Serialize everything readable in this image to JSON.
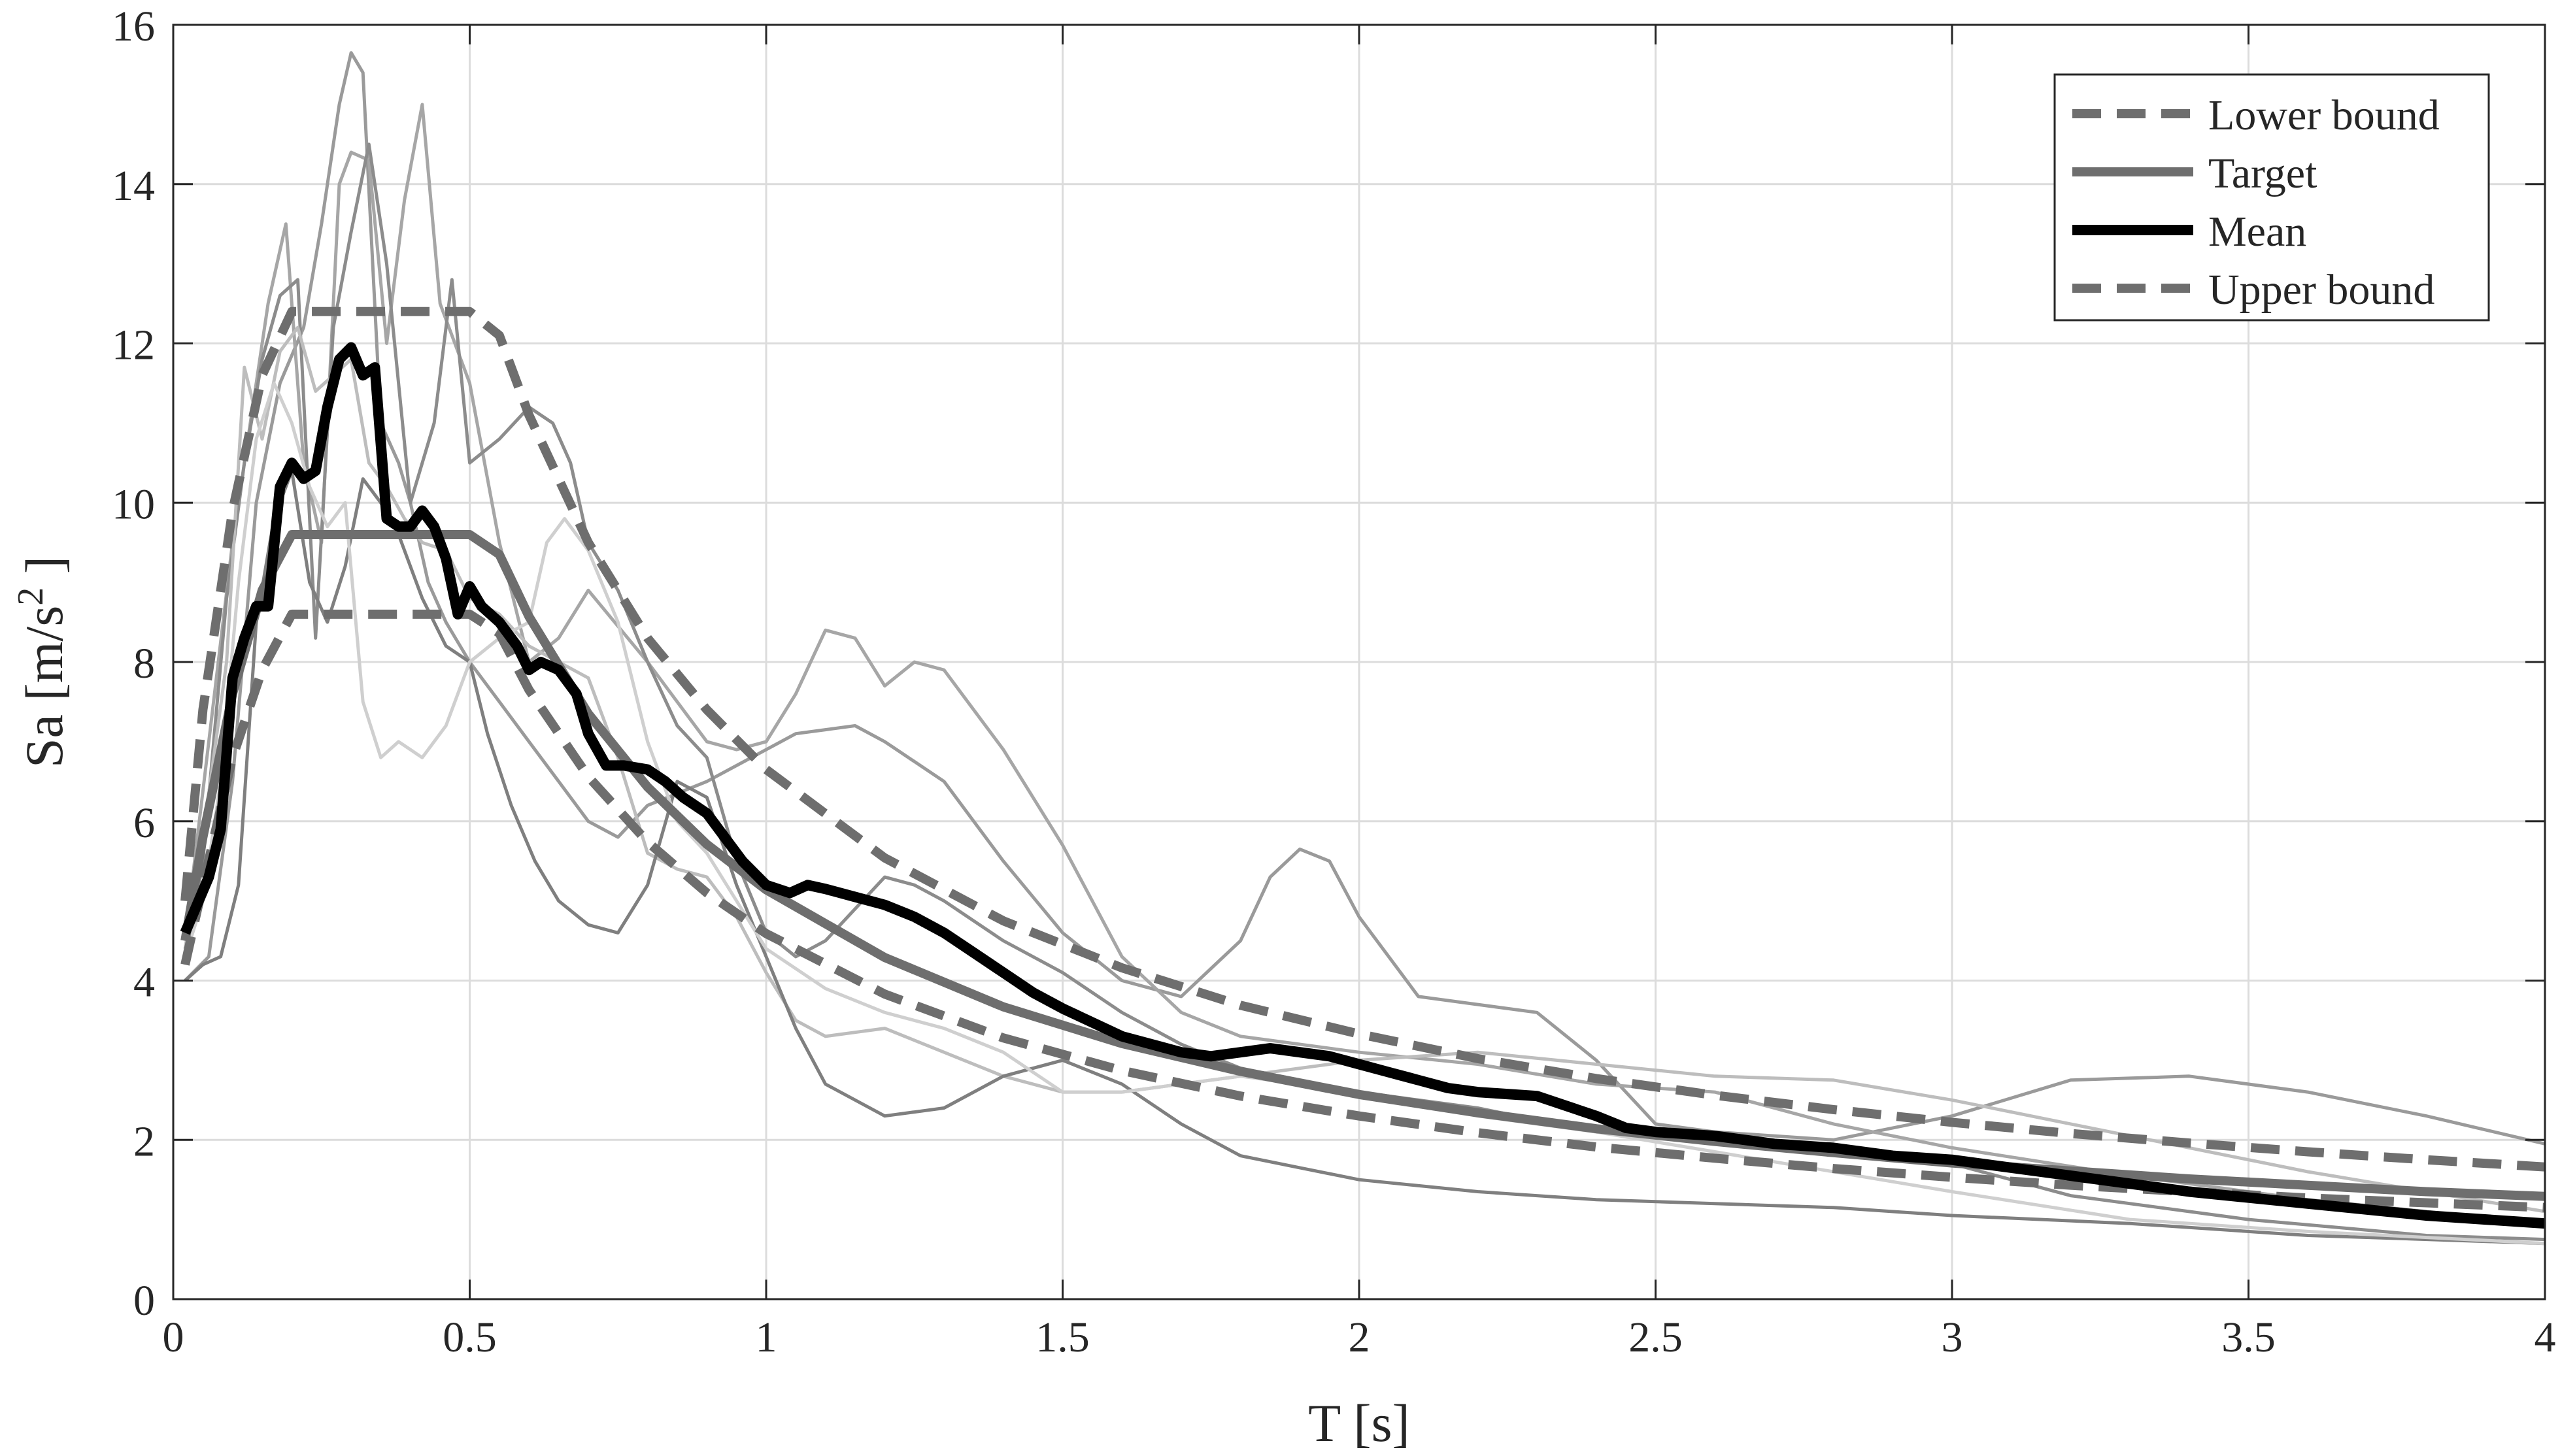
{
  "chart_data": {
    "type": "line",
    "xlabel": "T [s]",
    "ylabel": "Sa [m/s",
    "ylabel_sup": "2",
    "ylabel_tail": " ]",
    "xlim": [
      0,
      4
    ],
    "ylim": [
      0,
      16
    ],
    "xticks": [
      0,
      0.5,
      1,
      1.5,
      2,
      2.5,
      3,
      3.5,
      4
    ],
    "xtick_labels": [
      "0",
      "0.5",
      "1",
      "1.5",
      "2",
      "2.5",
      "3",
      "3.5",
      "4"
    ],
    "yticks": [
      0,
      2,
      4,
      6,
      8,
      10,
      12,
      14,
      16
    ],
    "ytick_labels": [
      "0",
      "2",
      "4",
      "6",
      "8",
      "10",
      "12",
      "14",
      "16"
    ],
    "grid": true,
    "legend_position": "top-right",
    "legend": [
      {
        "label": "Lower bound",
        "style": "dashed",
        "color": "#6e6e6e"
      },
      {
        "label": "Target",
        "style": "solid",
        "color": "#6e6e6e"
      },
      {
        "label": "Mean",
        "style": "solid",
        "color": "#000000"
      },
      {
        "label": "Upper bound",
        "style": "dashed",
        "color": "#6e6e6e"
      }
    ],
    "series": [
      {
        "name": "Lower bound",
        "color": "#6e6e6e",
        "dash": true,
        "width": 14,
        "x": [
          0.02,
          0.05,
          0.1,
          0.15,
          0.2,
          0.25,
          0.3,
          0.35,
          0.4,
          0.45,
          0.5,
          0.55,
          0.6,
          0.7,
          0.8,
          0.9,
          1.0,
          1.2,
          1.4,
          1.6,
          1.8,
          2.0,
          2.2,
          2.4,
          2.6,
          2.8,
          3.0,
          3.2,
          3.4,
          3.6,
          3.8,
          4.0
        ],
        "y": [
          4.2,
          5.2,
          6.8,
          7.9,
          8.6,
          8.6,
          8.6,
          8.6,
          8.6,
          8.6,
          8.6,
          8.36,
          7.65,
          6.56,
          5.74,
          5.1,
          4.59,
          3.83,
          3.28,
          2.87,
          2.55,
          2.3,
          2.09,
          1.91,
          1.77,
          1.64,
          1.53,
          1.43,
          1.35,
          1.27,
          1.21,
          1.15
        ]
      },
      {
        "name": "Target",
        "color": "#6e6e6e",
        "dash": false,
        "width": 14,
        "x": [
          0.02,
          0.05,
          0.1,
          0.15,
          0.2,
          0.25,
          0.3,
          0.35,
          0.4,
          0.45,
          0.5,
          0.55,
          0.6,
          0.7,
          0.8,
          0.9,
          1.0,
          1.2,
          1.4,
          1.6,
          1.8,
          2.0,
          2.2,
          2.4,
          2.6,
          2.8,
          3.0,
          3.2,
          3.4,
          3.6,
          3.8,
          4.0
        ],
        "y": [
          4.5,
          5.8,
          7.6,
          8.9,
          9.6,
          9.6,
          9.6,
          9.6,
          9.6,
          9.6,
          9.6,
          9.35,
          8.57,
          7.35,
          6.43,
          5.71,
          5.14,
          4.29,
          3.67,
          3.21,
          2.86,
          2.57,
          2.34,
          2.14,
          1.98,
          1.84,
          1.71,
          1.61,
          1.51,
          1.43,
          1.35,
          1.29
        ]
      },
      {
        "name": "Upper bound",
        "color": "#6e6e6e",
        "dash": true,
        "width": 14,
        "x": [
          0.02,
          0.05,
          0.1,
          0.15,
          0.2,
          0.25,
          0.3,
          0.35,
          0.4,
          0.45,
          0.5,
          0.55,
          0.6,
          0.7,
          0.8,
          0.9,
          1.0,
          1.2,
          1.4,
          1.6,
          1.8,
          2.0,
          2.2,
          2.4,
          2.6,
          2.8,
          3.0,
          3.2,
          3.4,
          3.6,
          3.8,
          4.0
        ],
        "y": [
          5.0,
          7.4,
          9.9,
          11.6,
          12.4,
          12.4,
          12.4,
          12.4,
          12.4,
          12.4,
          12.4,
          12.1,
          11.1,
          9.5,
          8.3,
          7.4,
          6.65,
          5.54,
          4.75,
          4.16,
          3.69,
          3.33,
          3.02,
          2.77,
          2.56,
          2.38,
          2.22,
          2.08,
          1.96,
          1.85,
          1.75,
          1.66
        ]
      },
      {
        "name": "Mean",
        "color": "#000000",
        "dash": false,
        "width": 16,
        "x": [
          0.02,
          0.06,
          0.08,
          0.1,
          0.12,
          0.14,
          0.16,
          0.18,
          0.2,
          0.22,
          0.24,
          0.26,
          0.28,
          0.3,
          0.32,
          0.34,
          0.36,
          0.38,
          0.4,
          0.42,
          0.44,
          0.46,
          0.48,
          0.5,
          0.52,
          0.55,
          0.58,
          0.6,
          0.62,
          0.65,
          0.68,
          0.7,
          0.73,
          0.76,
          0.8,
          0.83,
          0.86,
          0.9,
          0.93,
          0.96,
          1.0,
          1.04,
          1.07,
          1.1,
          1.15,
          1.2,
          1.25,
          1.3,
          1.35,
          1.4,
          1.45,
          1.5,
          1.6,
          1.7,
          1.75,
          1.8,
          1.85,
          1.9,
          1.95,
          2.0,
          2.05,
          2.1,
          2.15,
          2.2,
          2.3,
          2.4,
          2.45,
          2.5,
          2.6,
          2.7,
          2.8,
          2.9,
          3.0,
          3.2,
          3.4,
          3.6,
          3.8,
          4.0
        ],
        "y": [
          4.6,
          5.3,
          5.9,
          7.8,
          8.3,
          8.7,
          8.7,
          10.2,
          10.5,
          10.3,
          10.4,
          11.2,
          11.8,
          11.95,
          11.6,
          11.7,
          9.8,
          9.7,
          9.7,
          9.9,
          9.7,
          9.3,
          8.6,
          8.95,
          8.7,
          8.5,
          8.2,
          7.9,
          8.0,
          7.9,
          7.6,
          7.1,
          6.7,
          6.7,
          6.65,
          6.5,
          6.3,
          6.1,
          5.8,
          5.5,
          5.2,
          5.1,
          5.2,
          5.15,
          5.05,
          4.95,
          4.8,
          4.6,
          4.35,
          4.1,
          3.85,
          3.65,
          3.3,
          3.1,
          3.05,
          3.1,
          3.15,
          3.1,
          3.05,
          2.95,
          2.85,
          2.75,
          2.65,
          2.6,
          2.55,
          2.3,
          2.15,
          2.1,
          2.05,
          1.95,
          1.9,
          1.8,
          1.75,
          1.55,
          1.35,
          1.2,
          1.05,
          0.95
        ]
      },
      {
        "name": "",
        "color": "#9a9a9a",
        "dash": false,
        "width": 5,
        "x": [
          0.02,
          0.06,
          0.1,
          0.14,
          0.18,
          0.22,
          0.25,
          0.28,
          0.3,
          0.32,
          0.35,
          0.38,
          0.4,
          0.43,
          0.46,
          0.5,
          0.55,
          0.6,
          0.65,
          0.7,
          0.75,
          0.8,
          0.9,
          1.0,
          1.05,
          1.1,
          1.15,
          1.2,
          1.3,
          1.4,
          1.5,
          1.6,
          1.7,
          1.8,
          1.85,
          1.9,
          1.95,
          2.0,
          2.1,
          2.2,
          2.3,
          2.4,
          2.5,
          2.6,
          2.8,
          3.0,
          3.2,
          3.4,
          3.6,
          3.8,
          4.0
        ],
        "y": [
          4.0,
          4.3,
          6.5,
          10.0,
          11.5,
          12.2,
          13.5,
          15.0,
          15.65,
          15.4,
          11.0,
          10.5,
          10.0,
          9.0,
          8.5,
          8.0,
          7.5,
          7.0,
          6.5,
          6.0,
          5.8,
          6.2,
          6.5,
          6.9,
          7.1,
          7.15,
          7.2,
          7.0,
          6.5,
          5.5,
          4.6,
          4.0,
          3.8,
          4.5,
          5.3,
          5.65,
          5.5,
          4.8,
          3.8,
          3.7,
          3.6,
          3.0,
          2.2,
          2.1,
          2.0,
          2.3,
          2.75,
          2.8,
          2.6,
          2.3,
          1.95
        ]
      },
      {
        "name": "",
        "color": "#a6a6a6",
        "dash": false,
        "width": 5,
        "x": [
          0.02,
          0.06,
          0.1,
          0.13,
          0.16,
          0.19,
          0.22,
          0.25,
          0.28,
          0.3,
          0.33,
          0.36,
          0.39,
          0.42,
          0.45,
          0.5,
          0.55,
          0.6,
          0.65,
          0.7,
          0.8,
          0.9,
          0.95,
          1.0,
          1.05,
          1.1,
          1.15,
          1.2,
          1.25,
          1.3,
          1.4,
          1.5,
          1.6,
          1.7,
          1.8,
          2.0,
          2.2,
          2.4,
          2.6,
          2.8,
          3.0,
          3.3,
          3.6,
          4.0
        ],
        "y": [
          4.5,
          7.0,
          9.5,
          11.0,
          12.5,
          13.5,
          10.5,
          9.5,
          14.0,
          14.4,
          14.3,
          12.0,
          13.8,
          15.0,
          12.5,
          11.5,
          9.5,
          8.0,
          8.3,
          8.9,
          8.0,
          7.0,
          6.9,
          7.0,
          7.6,
          8.4,
          8.3,
          7.7,
          8.0,
          7.9,
          6.9,
          5.7,
          4.3,
          3.6,
          3.3,
          3.1,
          2.95,
          2.7,
          2.6,
          2.2,
          1.9,
          1.55,
          1.25,
          0.95
        ]
      },
      {
        "name": "",
        "color": "#8c8c8c",
        "dash": false,
        "width": 5,
        "x": [
          0.02,
          0.05,
          0.09,
          0.12,
          0.15,
          0.18,
          0.21,
          0.24,
          0.27,
          0.3,
          0.33,
          0.36,
          0.4,
          0.44,
          0.47,
          0.5,
          0.55,
          0.6,
          0.64,
          0.67,
          0.7,
          0.75,
          0.8,
          0.85,
          0.9,
          0.95,
          1.0,
          1.05,
          1.1,
          1.15,
          1.2,
          1.25,
          1.3,
          1.4,
          1.5,
          1.6,
          1.7,
          1.8,
          2.0,
          2.2,
          2.4,
          2.6,
          2.8,
          3.0,
          3.2,
          3.5,
          3.8,
          4.0
        ],
        "y": [
          4.2,
          5.5,
          8.8,
          10.5,
          11.8,
          12.6,
          12.8,
          8.3,
          12.2,
          13.4,
          14.5,
          13.0,
          10.0,
          11.0,
          12.8,
          10.5,
          10.8,
          11.2,
          11.0,
          10.5,
          9.5,
          8.9,
          8.0,
          7.2,
          6.8,
          5.5,
          4.6,
          4.3,
          4.5,
          4.9,
          5.3,
          5.2,
          5.0,
          4.5,
          4.1,
          3.6,
          3.2,
          2.9,
          2.6,
          2.4,
          2.1,
          2.0,
          1.9,
          1.7,
          1.3,
          1.0,
          0.8,
          0.75
        ]
      },
      {
        "name": "",
        "color": "#bdbdbd",
        "dash": false,
        "width": 5,
        "x": [
          0.02,
          0.05,
          0.09,
          0.12,
          0.15,
          0.18,
          0.21,
          0.24,
          0.27,
          0.3,
          0.33,
          0.36,
          0.39,
          0.42,
          0.46,
          0.5,
          0.55,
          0.6,
          0.65,
          0.7,
          0.75,
          0.8,
          0.85,
          0.9,
          0.95,
          1.0,
          1.05,
          1.1,
          1.15,
          1.2,
          1.3,
          1.4,
          1.5,
          1.6,
          1.7,
          1.8,
          2.0,
          2.2,
          2.4,
          2.6,
          2.8,
          3.0,
          3.2,
          3.4,
          3.6,
          3.8,
          4.0
        ],
        "y": [
          4.4,
          5.8,
          8.0,
          11.7,
          10.8,
          11.9,
          12.2,
          11.4,
          11.6,
          11.8,
          10.5,
          10.2,
          9.8,
          9.5,
          9.4,
          8.8,
          8.6,
          8.2,
          8.0,
          7.8,
          6.8,
          5.6,
          5.4,
          5.3,
          4.8,
          4.1,
          3.5,
          3.3,
          3.35,
          3.4,
          3.1,
          2.8,
          2.6,
          2.6,
          2.7,
          2.8,
          3.0,
          3.1,
          2.95,
          2.8,
          2.75,
          2.5,
          2.2,
          1.9,
          1.6,
          1.35,
          1.1
        ]
      },
      {
        "name": "",
        "color": "#7f7f7f",
        "dash": false,
        "width": 5,
        "x": [
          0.02,
          0.05,
          0.08,
          0.11,
          0.14,
          0.17,
          0.2,
          0.23,
          0.26,
          0.29,
          0.32,
          0.35,
          0.38,
          0.42,
          0.46,
          0.5,
          0.53,
          0.57,
          0.61,
          0.65,
          0.7,
          0.75,
          0.8,
          0.85,
          0.9,
          0.95,
          1.0,
          1.05,
          1.1,
          1.2,
          1.3,
          1.4,
          1.5,
          1.6,
          1.7,
          1.8,
          1.9,
          2.0,
          2.2,
          2.4,
          2.6,
          2.8,
          3.0,
          3.3,
          3.6,
          4.0
        ],
        "y": [
          4.0,
          4.2,
          4.3,
          5.2,
          8.5,
          9.8,
          10.4,
          9.0,
          8.5,
          9.2,
          10.3,
          10.0,
          9.6,
          8.8,
          8.2,
          8.0,
          7.1,
          6.2,
          5.5,
          5.0,
          4.7,
          4.6,
          5.2,
          6.5,
          6.3,
          5.2,
          4.3,
          3.4,
          2.7,
          2.3,
          2.4,
          2.8,
          3.0,
          2.7,
          2.2,
          1.8,
          1.65,
          1.5,
          1.35,
          1.25,
          1.2,
          1.15,
          1.05,
          0.95,
          0.8,
          0.7
        ]
      },
      {
        "name": "",
        "color": "#cfcfcf",
        "dash": false,
        "width": 5,
        "x": [
          0.02,
          0.05,
          0.08,
          0.11,
          0.14,
          0.17,
          0.2,
          0.23,
          0.26,
          0.29,
          0.32,
          0.35,
          0.38,
          0.42,
          0.46,
          0.5,
          0.55,
          0.6,
          0.63,
          0.66,
          0.7,
          0.75,
          0.8,
          0.85,
          0.9,
          0.95,
          1.0,
          1.1,
          1.2,
          1.3,
          1.4,
          1.5,
          1.6,
          1.7,
          1.8,
          2.0,
          2.2,
          2.4,
          2.6,
          2.8,
          3.0,
          3.3,
          3.6,
          4.0
        ],
        "y": [
          4.3,
          5.0,
          6.5,
          9.0,
          10.8,
          11.5,
          11.0,
          10.2,
          9.7,
          10.0,
          7.5,
          6.8,
          7.0,
          6.8,
          7.2,
          8.0,
          8.3,
          8.5,
          9.5,
          9.8,
          9.4,
          8.5,
          7.0,
          6.0,
          5.6,
          5.0,
          4.4,
          3.9,
          3.6,
          3.4,
          3.1,
          2.6,
          2.6,
          2.7,
          2.8,
          2.6,
          2.3,
          2.1,
          1.85,
          1.6,
          1.35,
          1.0,
          0.85,
          0.7
        ]
      }
    ]
  }
}
